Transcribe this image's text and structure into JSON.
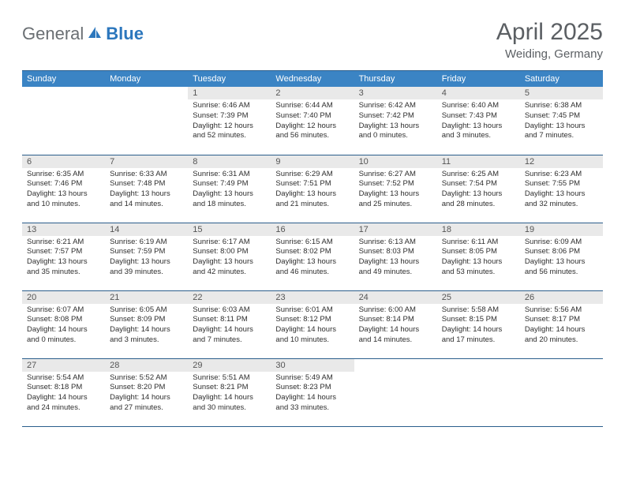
{
  "brand": {
    "part1": "General",
    "part2": "Blue"
  },
  "title": "April 2025",
  "location": "Weiding, Germany",
  "columns": [
    "Sunday",
    "Monday",
    "Tuesday",
    "Wednesday",
    "Thursday",
    "Friday",
    "Saturday"
  ],
  "colors": {
    "header_bg": "#3b84c4",
    "header_border": "#2b5e8c",
    "daynum_bg": "#e9e9e9",
    "text_muted": "#5b5f63",
    "brand_gray": "#6a6f73",
    "brand_blue": "#2c77bd"
  },
  "weeks": [
    [
      {
        "n": "",
        "lines": []
      },
      {
        "n": "",
        "lines": []
      },
      {
        "n": "1",
        "lines": [
          "Sunrise: 6:46 AM",
          "Sunset: 7:39 PM",
          "Daylight: 12 hours and 52 minutes."
        ]
      },
      {
        "n": "2",
        "lines": [
          "Sunrise: 6:44 AM",
          "Sunset: 7:40 PM",
          "Daylight: 12 hours and 56 minutes."
        ]
      },
      {
        "n": "3",
        "lines": [
          "Sunrise: 6:42 AM",
          "Sunset: 7:42 PM",
          "Daylight: 13 hours and 0 minutes."
        ]
      },
      {
        "n": "4",
        "lines": [
          "Sunrise: 6:40 AM",
          "Sunset: 7:43 PM",
          "Daylight: 13 hours and 3 minutes."
        ]
      },
      {
        "n": "5",
        "lines": [
          "Sunrise: 6:38 AM",
          "Sunset: 7:45 PM",
          "Daylight: 13 hours and 7 minutes."
        ]
      }
    ],
    [
      {
        "n": "6",
        "lines": [
          "Sunrise: 6:35 AM",
          "Sunset: 7:46 PM",
          "Daylight: 13 hours and 10 minutes."
        ]
      },
      {
        "n": "7",
        "lines": [
          "Sunrise: 6:33 AM",
          "Sunset: 7:48 PM",
          "Daylight: 13 hours and 14 minutes."
        ]
      },
      {
        "n": "8",
        "lines": [
          "Sunrise: 6:31 AM",
          "Sunset: 7:49 PM",
          "Daylight: 13 hours and 18 minutes."
        ]
      },
      {
        "n": "9",
        "lines": [
          "Sunrise: 6:29 AM",
          "Sunset: 7:51 PM",
          "Daylight: 13 hours and 21 minutes."
        ]
      },
      {
        "n": "10",
        "lines": [
          "Sunrise: 6:27 AM",
          "Sunset: 7:52 PM",
          "Daylight: 13 hours and 25 minutes."
        ]
      },
      {
        "n": "11",
        "lines": [
          "Sunrise: 6:25 AM",
          "Sunset: 7:54 PM",
          "Daylight: 13 hours and 28 minutes."
        ]
      },
      {
        "n": "12",
        "lines": [
          "Sunrise: 6:23 AM",
          "Sunset: 7:55 PM",
          "Daylight: 13 hours and 32 minutes."
        ]
      }
    ],
    [
      {
        "n": "13",
        "lines": [
          "Sunrise: 6:21 AM",
          "Sunset: 7:57 PM",
          "Daylight: 13 hours and 35 minutes."
        ]
      },
      {
        "n": "14",
        "lines": [
          "Sunrise: 6:19 AM",
          "Sunset: 7:59 PM",
          "Daylight: 13 hours and 39 minutes."
        ]
      },
      {
        "n": "15",
        "lines": [
          "Sunrise: 6:17 AM",
          "Sunset: 8:00 PM",
          "Daylight: 13 hours and 42 minutes."
        ]
      },
      {
        "n": "16",
        "lines": [
          "Sunrise: 6:15 AM",
          "Sunset: 8:02 PM",
          "Daylight: 13 hours and 46 minutes."
        ]
      },
      {
        "n": "17",
        "lines": [
          "Sunrise: 6:13 AM",
          "Sunset: 8:03 PM",
          "Daylight: 13 hours and 49 minutes."
        ]
      },
      {
        "n": "18",
        "lines": [
          "Sunrise: 6:11 AM",
          "Sunset: 8:05 PM",
          "Daylight: 13 hours and 53 minutes."
        ]
      },
      {
        "n": "19",
        "lines": [
          "Sunrise: 6:09 AM",
          "Sunset: 8:06 PM",
          "Daylight: 13 hours and 56 minutes."
        ]
      }
    ],
    [
      {
        "n": "20",
        "lines": [
          "Sunrise: 6:07 AM",
          "Sunset: 8:08 PM",
          "Daylight: 14 hours and 0 minutes."
        ]
      },
      {
        "n": "21",
        "lines": [
          "Sunrise: 6:05 AM",
          "Sunset: 8:09 PM",
          "Daylight: 14 hours and 3 minutes."
        ]
      },
      {
        "n": "22",
        "lines": [
          "Sunrise: 6:03 AM",
          "Sunset: 8:11 PM",
          "Daylight: 14 hours and 7 minutes."
        ]
      },
      {
        "n": "23",
        "lines": [
          "Sunrise: 6:01 AM",
          "Sunset: 8:12 PM",
          "Daylight: 14 hours and 10 minutes."
        ]
      },
      {
        "n": "24",
        "lines": [
          "Sunrise: 6:00 AM",
          "Sunset: 8:14 PM",
          "Daylight: 14 hours and 14 minutes."
        ]
      },
      {
        "n": "25",
        "lines": [
          "Sunrise: 5:58 AM",
          "Sunset: 8:15 PM",
          "Daylight: 14 hours and 17 minutes."
        ]
      },
      {
        "n": "26",
        "lines": [
          "Sunrise: 5:56 AM",
          "Sunset: 8:17 PM",
          "Daylight: 14 hours and 20 minutes."
        ]
      }
    ],
    [
      {
        "n": "27",
        "lines": [
          "Sunrise: 5:54 AM",
          "Sunset: 8:18 PM",
          "Daylight: 14 hours and 24 minutes."
        ]
      },
      {
        "n": "28",
        "lines": [
          "Sunrise: 5:52 AM",
          "Sunset: 8:20 PM",
          "Daylight: 14 hours and 27 minutes."
        ]
      },
      {
        "n": "29",
        "lines": [
          "Sunrise: 5:51 AM",
          "Sunset: 8:21 PM",
          "Daylight: 14 hours and 30 minutes."
        ]
      },
      {
        "n": "30",
        "lines": [
          "Sunrise: 5:49 AM",
          "Sunset: 8:23 PM",
          "Daylight: 14 hours and 33 minutes."
        ]
      },
      {
        "n": "",
        "lines": []
      },
      {
        "n": "",
        "lines": []
      },
      {
        "n": "",
        "lines": []
      }
    ]
  ]
}
